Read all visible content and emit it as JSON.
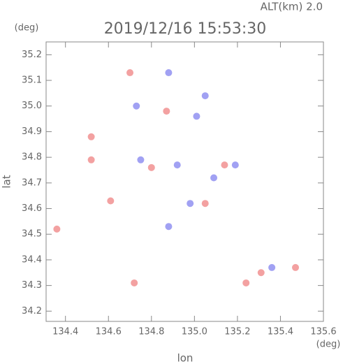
{
  "chart_data": {
    "type": "scatter",
    "title": "2019/12/16 15:53:30",
    "subtitle": "ALT(km) 2.0",
    "y_unit": "(deg)",
    "x_unit": "(deg)",
    "x_label": "lon",
    "y_label": "lat",
    "xlim": [
      134.31,
      135.6
    ],
    "ylim": [
      34.16,
      35.25
    ],
    "xticks": [
      134.4,
      134.6,
      134.8,
      {
        "value": 135,
        "label": "135.0"
      },
      135.2,
      135.4,
      135.6
    ],
    "yticks": [
      34.2,
      34.3,
      34.4,
      34.5,
      34.6,
      34.7,
      34.8,
      34.9,
      {
        "value": 35,
        "label": "35.0"
      },
      35.1,
      35.2
    ],
    "series": [
      {
        "color": "#f08a8a",
        "x": [
          134.36,
          134.52,
          134.7,
          134.87,
          135.31,
          135.24,
          135.05,
          134.8,
          134.72,
          134.61,
          135.47,
          134.52,
          135.14
        ],
        "values": [
          34.52,
          34.79,
          35.13,
          34.98,
          34.35,
          34.31,
          34.62,
          34.76,
          34.31,
          34.63,
          34.37,
          34.88,
          34.77
        ]
      },
      {
        "color": "#8a8af0",
        "x": [
          134.88,
          135.05,
          134.92,
          135.19,
          134.88,
          134.98,
          135.36,
          135.01,
          134.75,
          134.73,
          135.09
        ],
        "values": [
          35.13,
          35.04,
          34.77,
          34.77,
          34.53,
          34.62,
          34.37,
          34.96,
          34.79,
          35.0,
          34.72
        ]
      }
    ]
  }
}
